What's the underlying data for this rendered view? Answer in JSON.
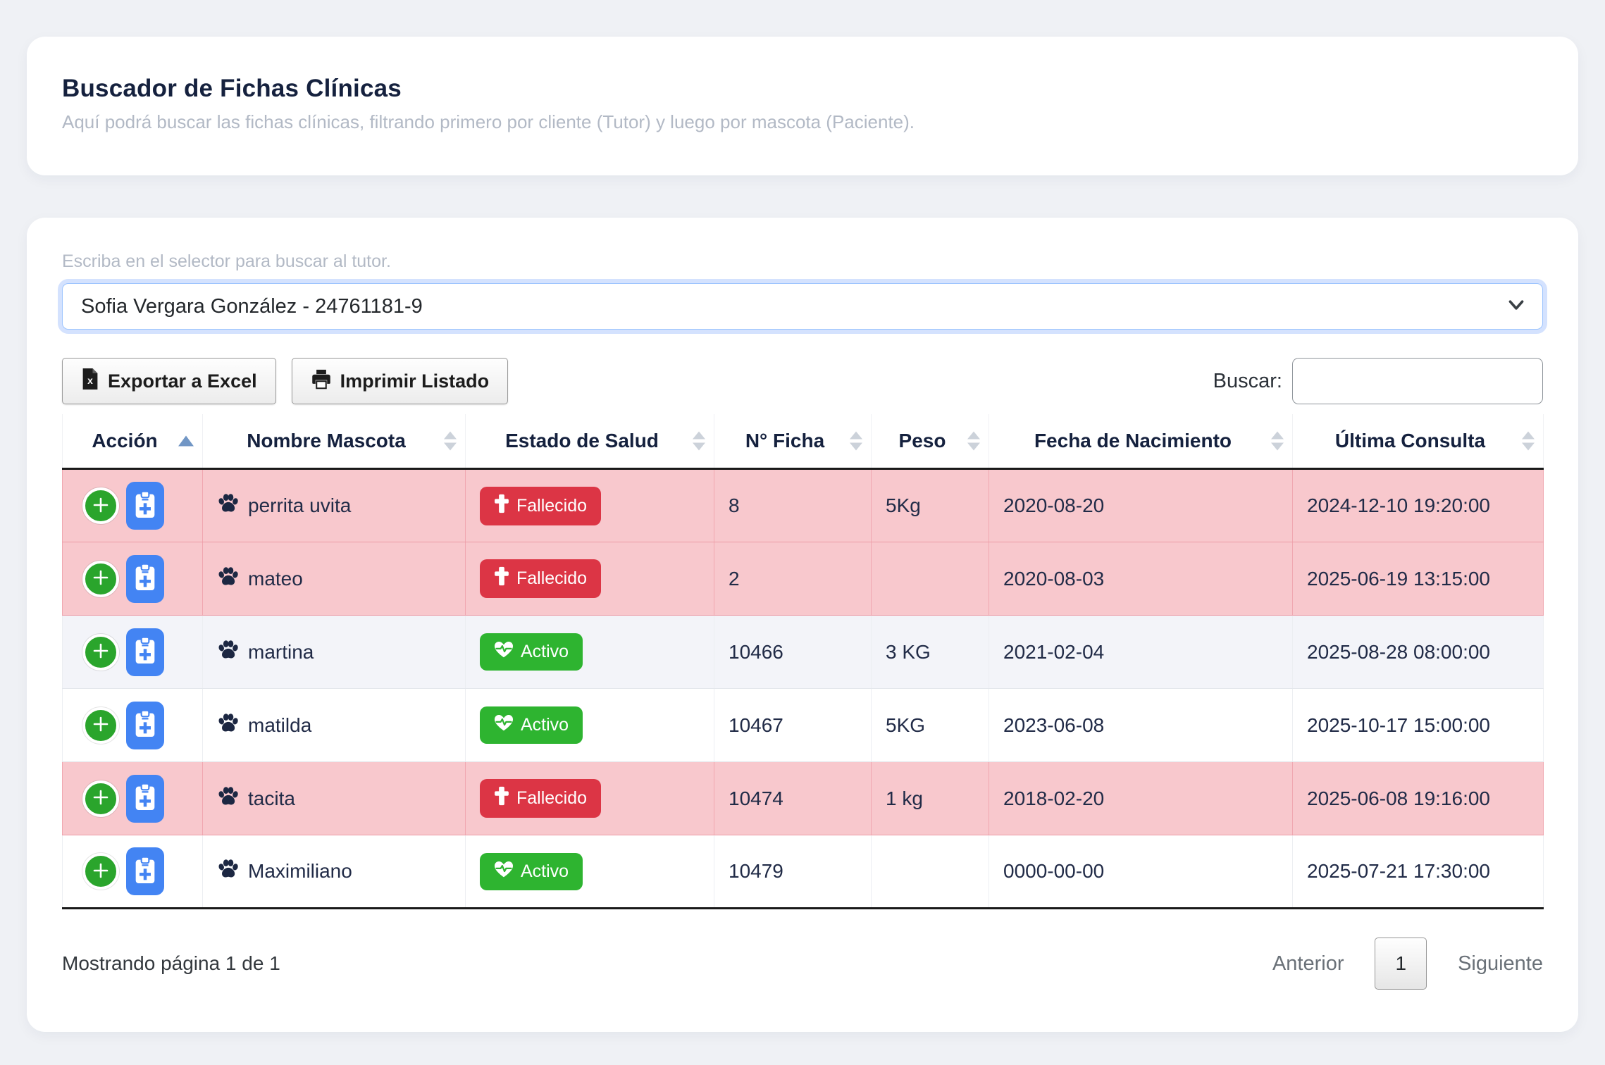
{
  "header": {
    "title": "Buscador de Fichas Clínicas",
    "subtitle": "Aquí podrá buscar las fichas clínicas, filtrando primero por cliente (Tutor) y luego por mascota (Paciente)."
  },
  "search_panel": {
    "selector_hint": "Escriba en el selector para buscar al tutor.",
    "tutor_selected": "Sofia Vergara González - 24761181-9",
    "export_excel_label": "Exportar a Excel",
    "print_label": "Imprimir Listado",
    "search_label": "Buscar:",
    "search_value": ""
  },
  "table": {
    "columns": [
      "Acción",
      "Nombre Mascota",
      "Estado de Salud",
      "N° Ficha",
      "Peso",
      "Fecha de Nacimiento",
      "Última Consulta"
    ],
    "sorted_column": "Acción",
    "sort_direction": "asc",
    "rows": [
      {
        "name": "perrita uvita",
        "status": "Fallecido",
        "ficha": "8",
        "peso": "5Kg",
        "nacimiento": "2020-08-20",
        "consulta": "2024-12-10 19:20:00",
        "deceased": true
      },
      {
        "name": "mateo",
        "status": "Fallecido",
        "ficha": "2",
        "peso": "",
        "nacimiento": "2020-08-03",
        "consulta": "2025-06-19 13:15:00",
        "deceased": true
      },
      {
        "name": "martina",
        "status": "Activo",
        "ficha": "10466",
        "peso": "3 KG",
        "nacimiento": "2021-02-04",
        "consulta": "2025-08-28 08:00:00",
        "deceased": false
      },
      {
        "name": "matilda",
        "status": "Activo",
        "ficha": "10467",
        "peso": "5KG",
        "nacimiento": "2023-06-08",
        "consulta": "2025-10-17 15:00:00",
        "deceased": false
      },
      {
        "name": "tacita",
        "status": "Fallecido",
        "ficha": "10474",
        "peso": "1 kg",
        "nacimiento": "2018-02-20",
        "consulta": "2025-06-08 19:16:00",
        "deceased": true
      },
      {
        "name": "Maximiliano",
        "status": "Activo",
        "ficha": "10479",
        "peso": "",
        "nacimiento": "0000-00-00",
        "consulta": "2025-07-21 17:30:00",
        "deceased": false
      }
    ]
  },
  "footer": {
    "page_info": "Mostrando página 1 de 1",
    "prev_label": "Anterior",
    "current_page": "1",
    "next_label": "Siguiente"
  },
  "icons": {
    "file-excel-icon": "document with x",
    "printer-icon": "printer",
    "chevron-down-icon": "v chevron",
    "paw-icon": "animal paw print",
    "cross-icon": "memorial cross",
    "heart-pulse-icon": "heart with pulse line",
    "plus-circle-icon": "circled plus",
    "clipboard-medical-icon": "clipboard with plus",
    "sort-asc-icon": "up triangle",
    "sort-both-icon": "up and down triangles"
  },
  "colors": {
    "page_bg": "#eff1f5",
    "title_navy": "#15213e",
    "deceased_badge": "#dc3545",
    "active_badge": "#2eb430",
    "deceased_row_bg": "#f8c8cd",
    "striped_row_bg": "#f3f4f9",
    "action_blue": "#4384f3",
    "action_green": "#2aa52c",
    "select_focus_ring": "#9ec5fe"
  }
}
